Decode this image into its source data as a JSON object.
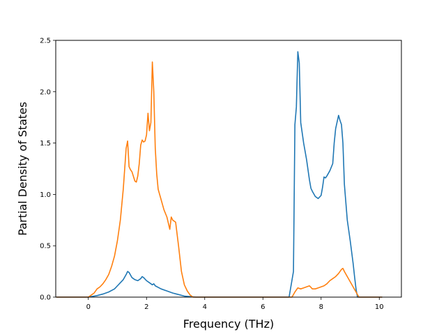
{
  "chart_data": {
    "type": "line",
    "title": "",
    "xlabel": "Frequency (THz)",
    "ylabel": "Partial Density of States",
    "xlim": [
      -1.12,
      10.76
    ],
    "ylim": [
      0,
      2.5
    ],
    "xticks": [
      0,
      2,
      4,
      6,
      8,
      10
    ],
    "xtick_labels": [
      "0",
      "2",
      "4",
      "6",
      "8",
      "10"
    ],
    "yticks": [
      0.0,
      0.5,
      1.0,
      1.5,
      2.0,
      2.5
    ],
    "ytick_labels": [
      "0.0",
      "0.5",
      "1.0",
      "1.5",
      "2.0",
      "2.5"
    ],
    "grid": false,
    "legend": "none",
    "series": [
      {
        "color": "#1f77b4",
        "x": [
          -1.1,
          0.0,
          0.1,
          0.3,
          0.5,
          0.7,
          0.9,
          1.0,
          1.1,
          1.2,
          1.3,
          1.35,
          1.4,
          1.5,
          1.6,
          1.7,
          1.8,
          1.85,
          1.9,
          2.0,
          2.1,
          2.2,
          2.25,
          2.3,
          2.5,
          2.7,
          2.9,
          3.1,
          3.3,
          3.5,
          3.7,
          4.0,
          5.0,
          6.0,
          6.9,
          7.05,
          7.1,
          7.15,
          7.2,
          7.25,
          7.3,
          7.35,
          7.4,
          7.5,
          7.6,
          7.65,
          7.7,
          7.8,
          7.9,
          8.0,
          8.05,
          8.1,
          8.15,
          8.2,
          8.3,
          8.4,
          8.45,
          8.5,
          8.6,
          8.65,
          8.7,
          8.75,
          8.8,
          8.9,
          9.0,
          9.1,
          9.15,
          9.2,
          9.25,
          9.3,
          10.1
        ],
        "y": [
          0.0,
          0.0,
          0.005,
          0.015,
          0.03,
          0.05,
          0.08,
          0.11,
          0.14,
          0.17,
          0.22,
          0.25,
          0.24,
          0.19,
          0.17,
          0.16,
          0.18,
          0.2,
          0.19,
          0.16,
          0.14,
          0.12,
          0.13,
          0.11,
          0.08,
          0.06,
          0.04,
          0.025,
          0.01,
          0.005,
          0.0,
          0.0,
          0.0,
          0.0,
          0.0,
          0.25,
          1.68,
          1.85,
          2.39,
          2.28,
          1.7,
          1.6,
          1.5,
          1.34,
          1.14,
          1.06,
          1.03,
          0.98,
          0.96,
          0.99,
          1.07,
          1.17,
          1.16,
          1.18,
          1.23,
          1.3,
          1.5,
          1.64,
          1.77,
          1.72,
          1.68,
          1.5,
          1.1,
          0.75,
          0.55,
          0.33,
          0.2,
          0.08,
          0.0,
          0.0,
          0.0
        ]
      },
      {
        "color": "#ff7f0e",
        "x": [
          -1.1,
          0.0,
          0.1,
          0.2,
          0.3,
          0.4,
          0.5,
          0.6,
          0.7,
          0.8,
          0.9,
          1.0,
          1.1,
          1.2,
          1.25,
          1.3,
          1.35,
          1.4,
          1.45,
          1.5,
          1.6,
          1.65,
          1.7,
          1.75,
          1.8,
          1.85,
          1.9,
          1.95,
          2.0,
          2.05,
          2.1,
          2.15,
          2.2,
          2.25,
          2.3,
          2.35,
          2.4,
          2.5,
          2.6,
          2.7,
          2.8,
          2.85,
          2.9,
          3.0,
          3.1,
          3.2,
          3.3,
          3.4,
          3.5,
          3.6,
          4.0,
          5.0,
          6.0,
          7.0,
          7.1,
          7.2,
          7.3,
          7.4,
          7.5,
          7.6,
          7.7,
          7.8,
          7.9,
          8.0,
          8.1,
          8.2,
          8.3,
          8.4,
          8.5,
          8.6,
          8.7,
          8.75,
          8.8,
          8.9,
          9.0,
          9.1,
          9.2,
          9.3,
          10.1
        ],
        "y": [
          0.0,
          0.0,
          0.02,
          0.04,
          0.08,
          0.1,
          0.13,
          0.17,
          0.22,
          0.3,
          0.4,
          0.55,
          0.75,
          1.05,
          1.25,
          1.45,
          1.52,
          1.27,
          1.24,
          1.22,
          1.13,
          1.12,
          1.18,
          1.3,
          1.48,
          1.53,
          1.51,
          1.52,
          1.58,
          1.79,
          1.62,
          1.7,
          2.29,
          2.0,
          1.45,
          1.2,
          1.05,
          0.95,
          0.85,
          0.78,
          0.66,
          0.78,
          0.75,
          0.73,
          0.5,
          0.25,
          0.12,
          0.06,
          0.02,
          0.0,
          0.0,
          0.0,
          0.0,
          0.0,
          0.05,
          0.09,
          0.08,
          0.09,
          0.1,
          0.11,
          0.08,
          0.08,
          0.09,
          0.1,
          0.11,
          0.13,
          0.16,
          0.18,
          0.2,
          0.23,
          0.27,
          0.28,
          0.25,
          0.2,
          0.15,
          0.1,
          0.05,
          0.0,
          0.0
        ]
      }
    ]
  }
}
